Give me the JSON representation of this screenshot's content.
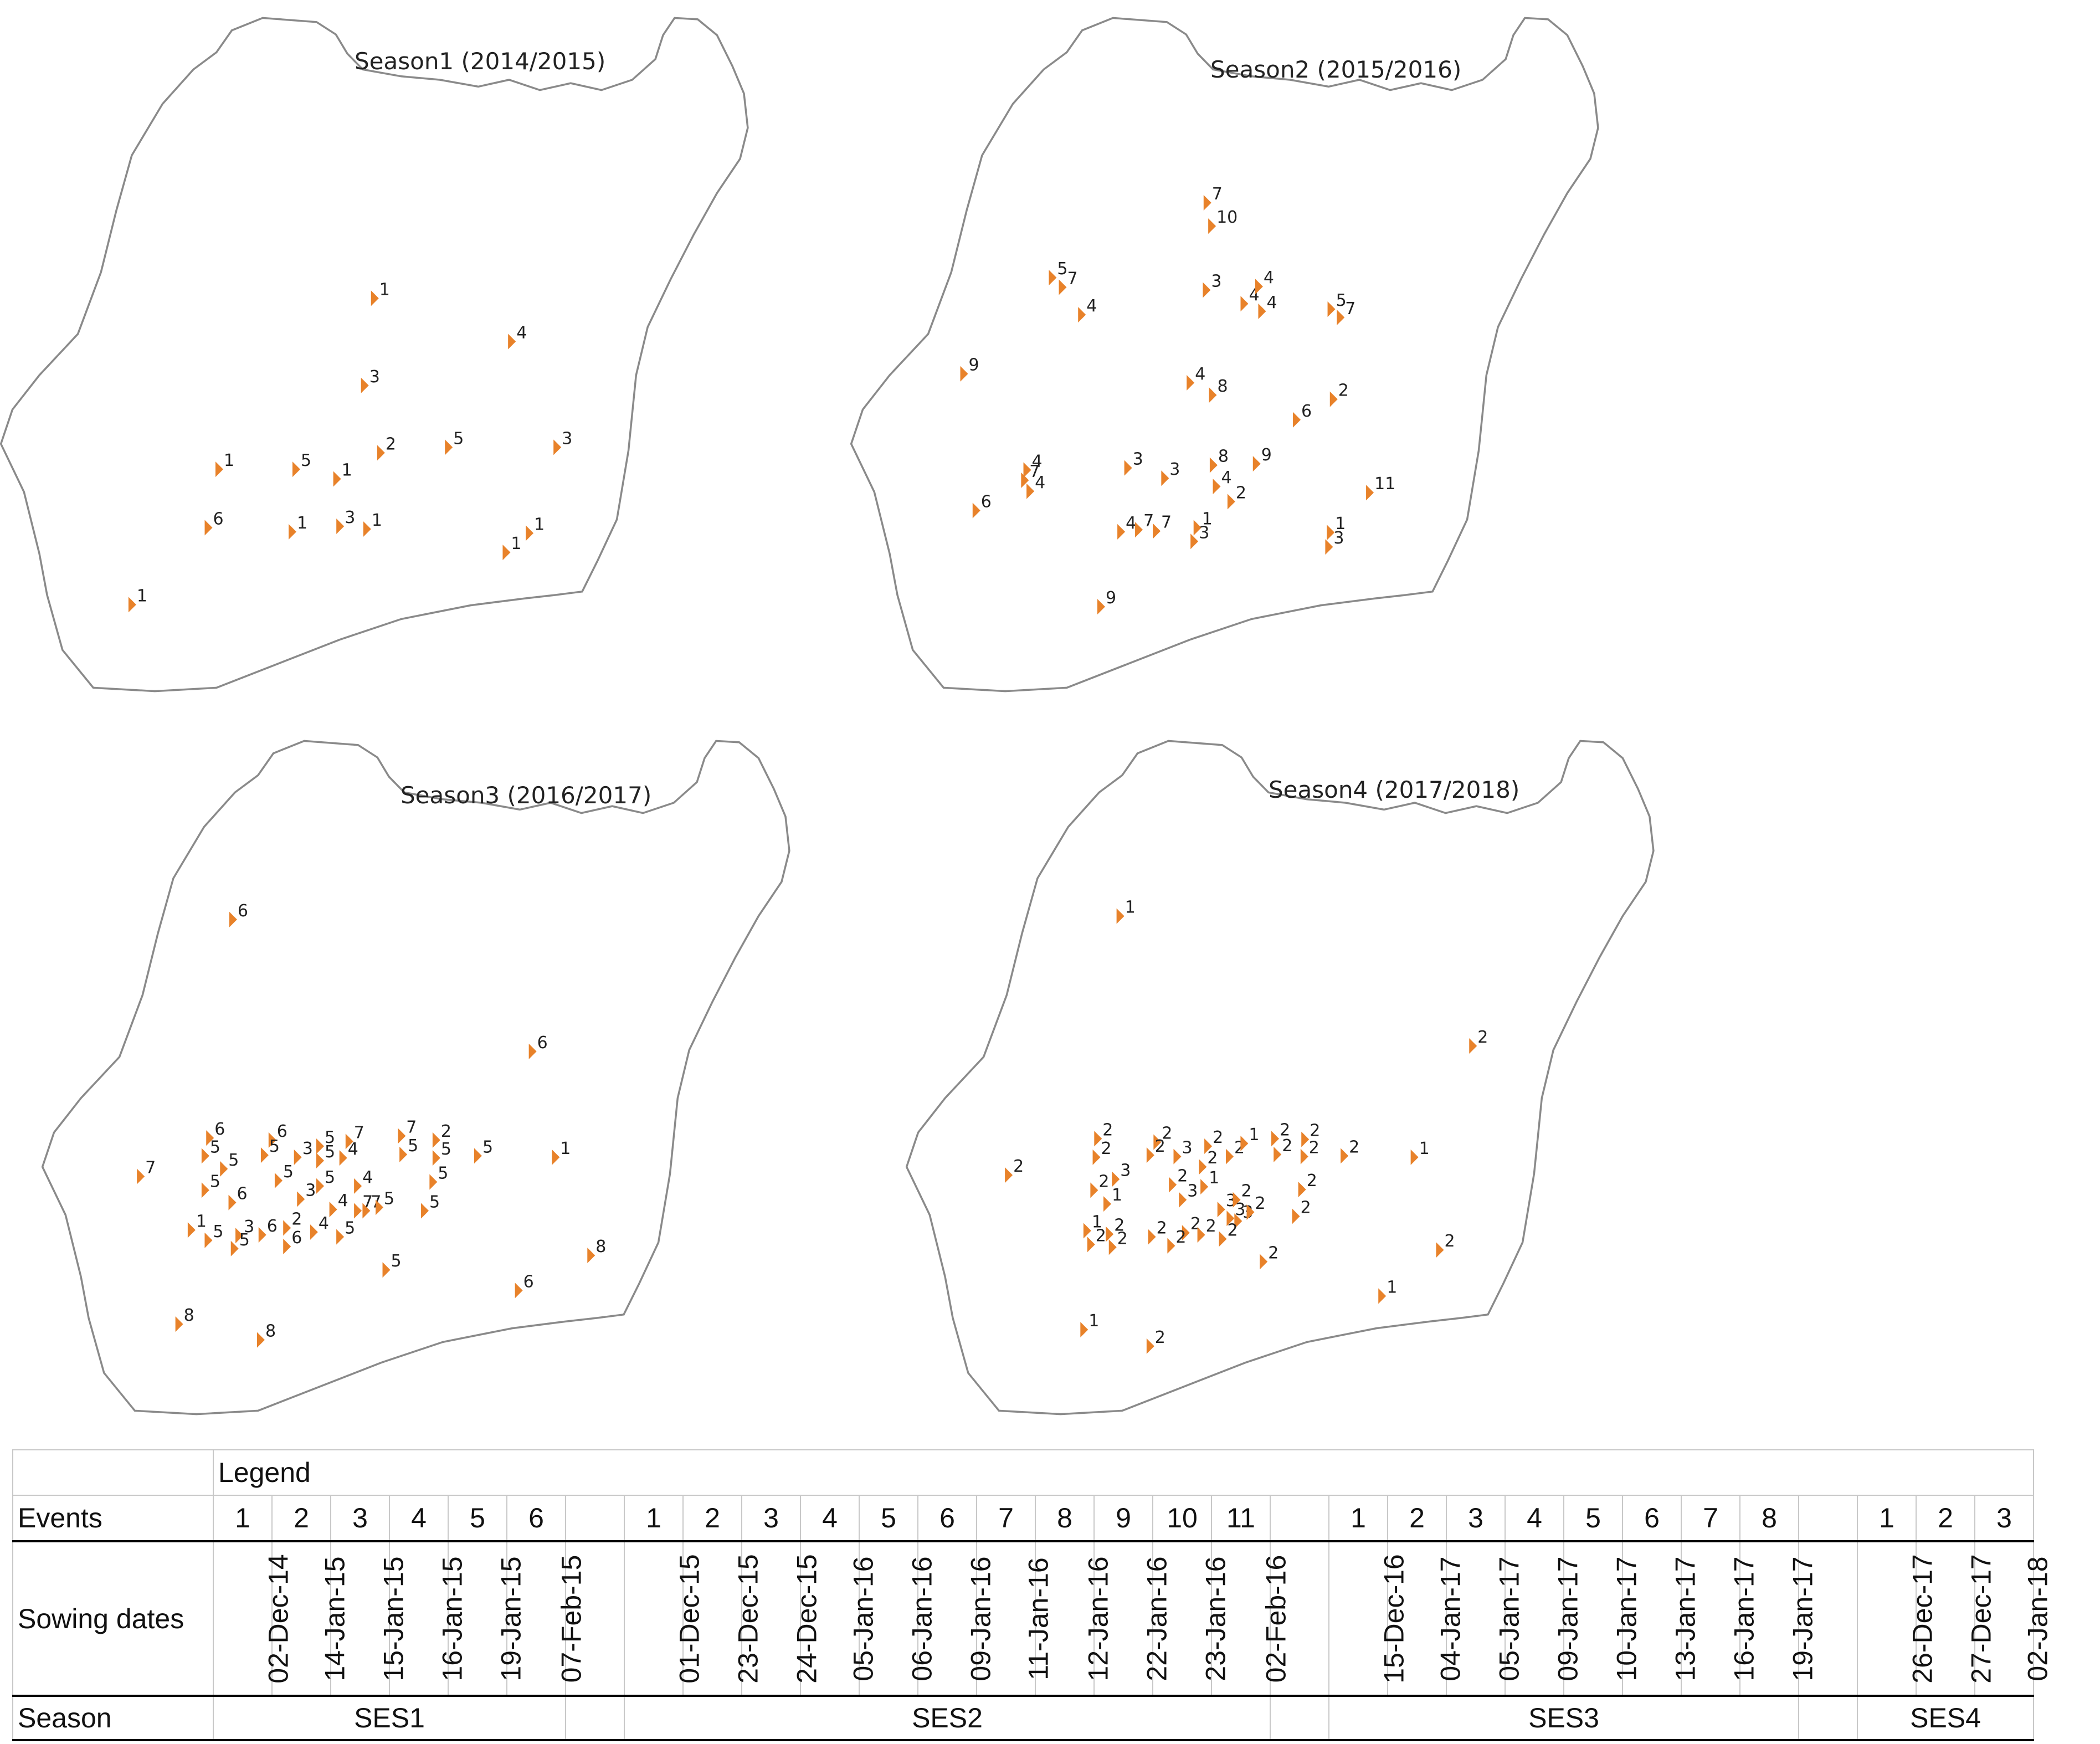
{
  "colors": {
    "marker": "#e8822a",
    "outline": "#8a8a8a",
    "text": "#222222",
    "table_border": "#c8c8c8"
  },
  "maps": [
    {
      "title": "Season1 (2014/2015)",
      "points": [
        {
          "e": "1",
          "x": 0.425,
          "y": 0.418
        },
        {
          "e": "4",
          "x": 0.603,
          "y": 0.481
        },
        {
          "e": "3",
          "x": 0.412,
          "y": 0.545
        },
        {
          "e": "1",
          "x": 0.223,
          "y": 0.667
        },
        {
          "e": "5",
          "x": 0.323,
          "y": 0.667
        },
        {
          "e": "1",
          "x": 0.376,
          "y": 0.681
        },
        {
          "e": "2",
          "x": 0.433,
          "y": 0.643
        },
        {
          "e": "5",
          "x": 0.521,
          "y": 0.635
        },
        {
          "e": "3",
          "x": 0.662,
          "y": 0.635
        },
        {
          "e": "6",
          "x": 0.209,
          "y": 0.752
        },
        {
          "e": "1",
          "x": 0.318,
          "y": 0.758
        },
        {
          "e": "3",
          "x": 0.38,
          "y": 0.75
        },
        {
          "e": "1",
          "x": 0.415,
          "y": 0.754
        },
        {
          "e": "1",
          "x": 0.596,
          "y": 0.788
        },
        {
          "e": "1",
          "x": 0.626,
          "y": 0.76
        },
        {
          "e": "1",
          "x": 0.11,
          "y": 0.864
        }
      ]
    },
    {
      "title": "Season2 (2015/2016)",
      "points": [
        {
          "e": "7",
          "x": 0.402,
          "y": 0.279
        },
        {
          "e": "10",
          "x": 0.408,
          "y": 0.313
        },
        {
          "e": "5",
          "x": 0.201,
          "y": 0.388
        },
        {
          "e": "7",
          "x": 0.214,
          "y": 0.402
        },
        {
          "e": "4",
          "x": 0.239,
          "y": 0.442
        },
        {
          "e": "3",
          "x": 0.401,
          "y": 0.406
        },
        {
          "e": "4",
          "x": 0.45,
          "y": 0.426
        },
        {
          "e": "4",
          "x": 0.469,
          "y": 0.401
        },
        {
          "e": "4",
          "x": 0.473,
          "y": 0.437
        },
        {
          "e": "5",
          "x": 0.563,
          "y": 0.434
        },
        {
          "e": "7",
          "x": 0.575,
          "y": 0.446
        },
        {
          "e": "9",
          "x": 0.086,
          "y": 0.528
        },
        {
          "e": "4",
          "x": 0.38,
          "y": 0.541
        },
        {
          "e": "8",
          "x": 0.409,
          "y": 0.559
        },
        {
          "e": "6",
          "x": 0.518,
          "y": 0.595
        },
        {
          "e": "2",
          "x": 0.566,
          "y": 0.565
        },
        {
          "e": "4",
          "x": 0.168,
          "y": 0.668
        },
        {
          "e": "7",
          "x": 0.165,
          "y": 0.683
        },
        {
          "e": "4",
          "x": 0.172,
          "y": 0.699
        },
        {
          "e": "3",
          "x": 0.299,
          "y": 0.665
        },
        {
          "e": "3",
          "x": 0.347,
          "y": 0.68
        },
        {
          "e": "8",
          "x": 0.41,
          "y": 0.661
        },
        {
          "e": "9",
          "x": 0.466,
          "y": 0.659
        },
        {
          "e": "4",
          "x": 0.414,
          "y": 0.692
        },
        {
          "e": "2",
          "x": 0.433,
          "y": 0.714
        },
        {
          "e": "11",
          "x": 0.613,
          "y": 0.701
        },
        {
          "e": "6",
          "x": 0.102,
          "y": 0.727
        },
        {
          "e": "4",
          "x": 0.29,
          "y": 0.758
        },
        {
          "e": "7",
          "x": 0.313,
          "y": 0.755
        },
        {
          "e": "7",
          "x": 0.336,
          "y": 0.757
        },
        {
          "e": "1",
          "x": 0.389,
          "y": 0.752
        },
        {
          "e": "3",
          "x": 0.385,
          "y": 0.772
        },
        {
          "e": "1",
          "x": 0.562,
          "y": 0.759
        },
        {
          "e": "3",
          "x": 0.56,
          "y": 0.78
        },
        {
          "e": "9",
          "x": 0.264,
          "y": 0.867
        }
      ]
    },
    {
      "title": "Season3 (2016/2017)",
      "points": [
        {
          "e": "6",
          "x": 0.187,
          "y": 0.27
        },
        {
          "e": "6",
          "x": 0.576,
          "y": 0.462
        },
        {
          "e": "7",
          "x": 0.067,
          "y": 0.644
        },
        {
          "e": "6",
          "x": 0.157,
          "y": 0.588
        },
        {
          "e": "5",
          "x": 0.151,
          "y": 0.614
        },
        {
          "e": "5",
          "x": 0.175,
          "y": 0.633
        },
        {
          "e": "5",
          "x": 0.151,
          "y": 0.664
        },
        {
          "e": "6",
          "x": 0.186,
          "y": 0.682
        },
        {
          "e": "1",
          "x": 0.133,
          "y": 0.722
        },
        {
          "e": "5",
          "x": 0.155,
          "y": 0.737
        },
        {
          "e": "3",
          "x": 0.195,
          "y": 0.73
        },
        {
          "e": "5",
          "x": 0.189,
          "y": 0.749
        },
        {
          "e": "6",
          "x": 0.238,
          "y": 0.591
        },
        {
          "e": "5",
          "x": 0.228,
          "y": 0.613
        },
        {
          "e": "3",
          "x": 0.271,
          "y": 0.616
        },
        {
          "e": "5",
          "x": 0.246,
          "y": 0.65
        },
        {
          "e": "3",
          "x": 0.275,
          "y": 0.677
        },
        {
          "e": "6",
          "x": 0.225,
          "y": 0.729
        },
        {
          "e": "2",
          "x": 0.257,
          "y": 0.719
        },
        {
          "e": "6",
          "x": 0.257,
          "y": 0.746
        },
        {
          "e": "4",
          "x": 0.292,
          "y": 0.725
        },
        {
          "e": "5",
          "x": 0.3,
          "y": 0.6
        },
        {
          "e": "5",
          "x": 0.3,
          "y": 0.621
        },
        {
          "e": "5",
          "x": 0.3,
          "y": 0.658
        },
        {
          "e": "4",
          "x": 0.33,
          "y": 0.617
        },
        {
          "e": "4",
          "x": 0.317,
          "y": 0.692
        },
        {
          "e": "4",
          "x": 0.349,
          "y": 0.658
        },
        {
          "e": "7",
          "x": 0.338,
          "y": 0.593
        },
        {
          "e": "7",
          "x": 0.349,
          "y": 0.694
        },
        {
          "e": "7",
          "x": 0.36,
          "y": 0.694
        },
        {
          "e": "5",
          "x": 0.377,
          "y": 0.689
        },
        {
          "e": "5",
          "x": 0.326,
          "y": 0.732
        },
        {
          "e": "5",
          "x": 0.386,
          "y": 0.78
        },
        {
          "e": "7",
          "x": 0.406,
          "y": 0.585
        },
        {
          "e": "5",
          "x": 0.408,
          "y": 0.612
        },
        {
          "e": "2",
          "x": 0.451,
          "y": 0.591
        },
        {
          "e": "5",
          "x": 0.451,
          "y": 0.617
        },
        {
          "e": "5",
          "x": 0.447,
          "y": 0.652
        },
        {
          "e": "5",
          "x": 0.436,
          "y": 0.694
        },
        {
          "e": "5",
          "x": 0.505,
          "y": 0.614
        },
        {
          "e": "1",
          "x": 0.606,
          "y": 0.616
        },
        {
          "e": "8",
          "x": 0.652,
          "y": 0.759
        },
        {
          "e": "6",
          "x": 0.558,
          "y": 0.81
        },
        {
          "e": "8",
          "x": 0.117,
          "y": 0.859
        },
        {
          "e": "8",
          "x": 0.223,
          "y": 0.882
        }
      ]
    },
    {
      "title": "Season4 (2017/2018)",
      "points": [
        {
          "e": "1",
          "x": 0.217,
          "y": 0.265
        },
        {
          "e": "2",
          "x": 0.675,
          "y": 0.454
        },
        {
          "e": "2",
          "x": 0.072,
          "y": 0.642
        },
        {
          "e": "2",
          "x": 0.188,
          "y": 0.589
        },
        {
          "e": "2",
          "x": 0.186,
          "y": 0.616
        },
        {
          "e": "2",
          "x": 0.183,
          "y": 0.664
        },
        {
          "e": "3",
          "x": 0.211,
          "y": 0.648
        },
        {
          "e": "1",
          "x": 0.2,
          "y": 0.684
        },
        {
          "e": "1",
          "x": 0.174,
          "y": 0.723
        },
        {
          "e": "2",
          "x": 0.179,
          "y": 0.743
        },
        {
          "e": "2",
          "x": 0.203,
          "y": 0.728
        },
        {
          "e": "2",
          "x": 0.207,
          "y": 0.747
        },
        {
          "e": "2",
          "x": 0.265,
          "y": 0.594
        },
        {
          "e": "2",
          "x": 0.256,
          "y": 0.613
        },
        {
          "e": "3",
          "x": 0.291,
          "y": 0.615
        },
        {
          "e": "2",
          "x": 0.285,
          "y": 0.656
        },
        {
          "e": "3",
          "x": 0.298,
          "y": 0.678
        },
        {
          "e": "2",
          "x": 0.258,
          "y": 0.732
        },
        {
          "e": "2",
          "x": 0.302,
          "y": 0.726
        },
        {
          "e": "2",
          "x": 0.283,
          "y": 0.745
        },
        {
          "e": "2",
          "x": 0.324,
          "y": 0.63
        },
        {
          "e": "2",
          "x": 0.331,
          "y": 0.6
        },
        {
          "e": "1",
          "x": 0.326,
          "y": 0.659
        },
        {
          "e": "2",
          "x": 0.359,
          "y": 0.615
        },
        {
          "e": "1",
          "x": 0.378,
          "y": 0.596
        },
        {
          "e": "2",
          "x": 0.322,
          "y": 0.729
        },
        {
          "e": "3",
          "x": 0.348,
          "y": 0.692
        },
        {
          "e": "3",
          "x": 0.36,
          "y": 0.705
        },
        {
          "e": "3",
          "x": 0.37,
          "y": 0.709
        },
        {
          "e": "2",
          "x": 0.368,
          "y": 0.678
        },
        {
          "e": "2",
          "x": 0.386,
          "y": 0.696
        },
        {
          "e": "2",
          "x": 0.35,
          "y": 0.735
        },
        {
          "e": "2",
          "x": 0.418,
          "y": 0.589
        },
        {
          "e": "2",
          "x": 0.421,
          "y": 0.612
        },
        {
          "e": "2",
          "x": 0.457,
          "y": 0.59
        },
        {
          "e": "2",
          "x": 0.456,
          "y": 0.615
        },
        {
          "e": "2",
          "x": 0.453,
          "y": 0.663
        },
        {
          "e": "2",
          "x": 0.445,
          "y": 0.702
        },
        {
          "e": "2",
          "x": 0.508,
          "y": 0.614
        },
        {
          "e": "2",
          "x": 0.403,
          "y": 0.768
        },
        {
          "e": "1",
          "x": 0.599,
          "y": 0.616
        },
        {
          "e": "2",
          "x": 0.632,
          "y": 0.751
        },
        {
          "e": "1",
          "x": 0.557,
          "y": 0.818
        },
        {
          "e": "1",
          "x": 0.17,
          "y": 0.867
        },
        {
          "e": "2",
          "x": 0.256,
          "y": 0.891
        }
      ]
    }
  ],
  "legend": {
    "title": "Legend",
    "row_labels": {
      "events": "Events",
      "sowing_dates": "Sowing dates",
      "season": "Season"
    },
    "groups": [
      {
        "season": "SES1",
        "events": [
          "1",
          "2",
          "3",
          "4",
          "5",
          "6"
        ],
        "dates": [
          "02-Dec-14",
          "14-Jan-15",
          "15-Jan-15",
          "16-Jan-15",
          "19-Jan-15",
          "07-Feb-15"
        ]
      },
      {
        "season": "SES2",
        "events": [
          "1",
          "2",
          "3",
          "4",
          "5",
          "6",
          "7",
          "8",
          "9",
          "10",
          "11"
        ],
        "dates": [
          "01-Dec-15",
          "23-Dec-15",
          "24-Dec-15",
          "05-Jan-16",
          "06-Jan-16",
          "09-Jan-16",
          "11-Jan-16",
          "12-Jan-16",
          "22-Jan-16",
          "23-Jan-16",
          "02-Feb-16"
        ]
      },
      {
        "season": "SES3",
        "events": [
          "1",
          "2",
          "3",
          "4",
          "5",
          "6",
          "7",
          "8"
        ],
        "dates": [
          "15-Dec-16",
          "04-Jan-17",
          "05-Jan-17",
          "09-Jan-17",
          "10-Jan-17",
          "13-Jan-17",
          "16-Jan-17",
          "19-Jan-17"
        ]
      },
      {
        "season": "SES4",
        "events": [
          "1",
          "2",
          "3"
        ],
        "dates": [
          "26-Dec-17",
          "27-Dec-17",
          "02-Jan-18"
        ]
      }
    ]
  }
}
